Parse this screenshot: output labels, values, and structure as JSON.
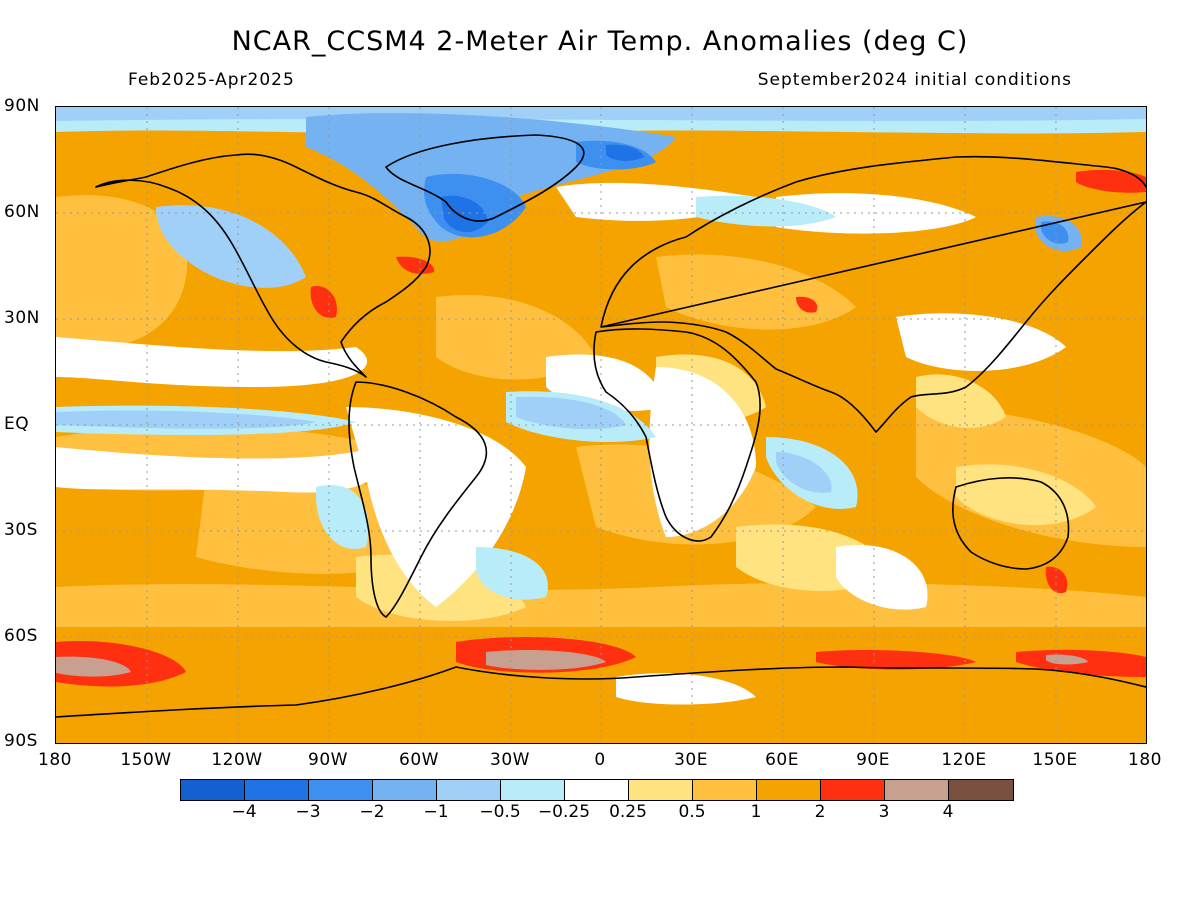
{
  "title": "NCAR_CCSM4 2-Meter Air Temp. Anomalies (deg C)",
  "period": "Feb2025-Apr2025",
  "initial_conditions": "September2024 initial conditions",
  "map": {
    "lat_labels": [
      "90N",
      "60N",
      "30N",
      "EQ",
      "30S",
      "60S",
      "90S"
    ],
    "lon_labels": [
      "180",
      "150W",
      "120W",
      "90W",
      "60W",
      "30W",
      "0",
      "30E",
      "60E",
      "90E",
      "120E",
      "150E",
      "180"
    ],
    "grid": "dotted"
  },
  "colorbar": {
    "colors": [
      "#1560d0",
      "#1f73e6",
      "#3d8ff0",
      "#74b2f2",
      "#a0d0f8",
      "#b8ecf8",
      "#ffffff",
      "#ffe380",
      "#ffc040",
      "#f5a300",
      "#ff3010",
      "#c8a090",
      "#7a5040"
    ],
    "labels": [
      "−4",
      "−3",
      "−2",
      "−1",
      "−0.5",
      "−0.25",
      "0.25",
      "0.5",
      "1",
      "2",
      "3",
      "4"
    ]
  }
}
